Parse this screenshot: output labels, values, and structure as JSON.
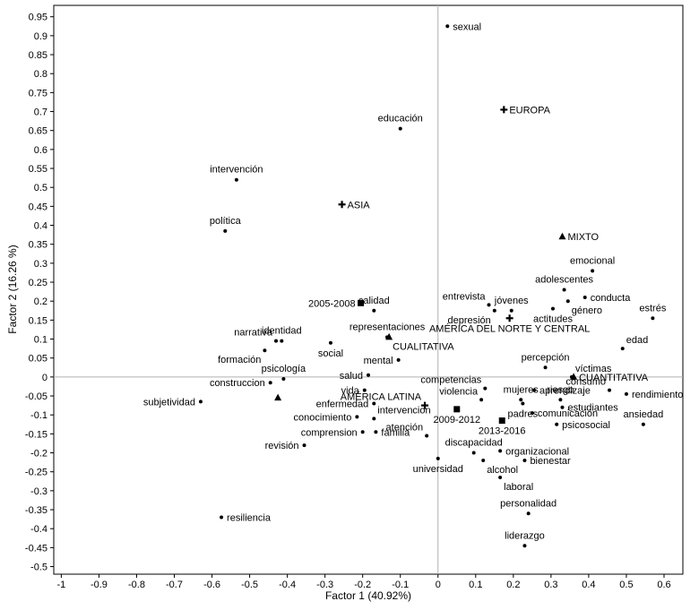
{
  "chart_data": {
    "type": "scatter",
    "title": "",
    "xlabel": "Factor 1 (40.92%)",
    "ylabel": "Factor 2 (16.26 %)",
    "xlim": [
      -1.02,
      0.65
    ],
    "ylim": [
      -0.52,
      0.98
    ],
    "xticks": [
      "-1",
      "-0.9",
      "-0.8",
      "-0.7",
      "-0.6",
      "-0.5",
      "-0.4",
      "-0.3",
      "-0.2",
      "-0.1",
      "0",
      "0.1",
      "0.2",
      "0.3",
      "0.4",
      "0.5",
      "0.6"
    ],
    "yticks": [
      "0.95",
      "0.9",
      "0.85",
      "0.8",
      "0.75",
      "0.7",
      "0.65",
      "0.6",
      "0.55",
      "0.5",
      "0.45",
      "0.4",
      "0.35",
      "0.3",
      "0.25",
      "0.2",
      "0.15",
      "0.1",
      "0.05",
      "0",
      "-0.05",
      "-0.1",
      "-0.15",
      "-0.2",
      "-0.25",
      "-0.3",
      "-0.35",
      "-0.4",
      "-0.45",
      "-0.5"
    ],
    "reference_lines": {
      "x": 0,
      "y": 0
    },
    "grid": false,
    "points": [
      {
        "label": "sexual",
        "x": 0.025,
        "y": 0.925,
        "marker": "dot",
        "pos": "right"
      },
      {
        "label": "EUROPA",
        "x": 0.175,
        "y": 0.705,
        "marker": "plus",
        "pos": "right"
      },
      {
        "label": "educación",
        "x": -0.1,
        "y": 0.655,
        "marker": "dot",
        "pos": "above"
      },
      {
        "label": "intervención",
        "x": -0.535,
        "y": 0.52,
        "marker": "dot",
        "pos": "above"
      },
      {
        "label": "ASIA",
        "x": -0.255,
        "y": 0.455,
        "marker": "plus",
        "pos": "right"
      },
      {
        "label": "política",
        "x": -0.565,
        "y": 0.385,
        "marker": "dot",
        "pos": "above"
      },
      {
        "label": "MIXTO",
        "x": 0.33,
        "y": 0.37,
        "marker": "triangle",
        "pos": "right"
      },
      {
        "label": "emocional",
        "x": 0.41,
        "y": 0.28,
        "marker": "dot",
        "pos": "above"
      },
      {
        "label": "adolescentes",
        "x": 0.335,
        "y": 0.23,
        "marker": "dot",
        "pos": "above"
      },
      {
        "label": "conducta",
        "x": 0.39,
        "y": 0.21,
        "marker": "dot",
        "pos": "right"
      },
      {
        "label": "estrés",
        "x": 0.57,
        "y": 0.155,
        "marker": "dot",
        "pos": "above"
      },
      {
        "label": "género",
        "x": 0.345,
        "y": 0.2,
        "marker": "dot",
        "pos": "below-right"
      },
      {
        "label": "2005-2008",
        "x": -0.205,
        "y": 0.195,
        "marker": "square",
        "pos": "left"
      },
      {
        "label": "calidad",
        "x": -0.17,
        "y": 0.175,
        "marker": "dot",
        "pos": "above"
      },
      {
        "label": "entrevista",
        "x": 0.135,
        "y": 0.19,
        "marker": "dot",
        "pos": "above-left"
      },
      {
        "label": "jóvenes",
        "x": 0.195,
        "y": 0.175,
        "marker": "dot",
        "pos": "above"
      },
      {
        "label": "depresión",
        "x": 0.15,
        "y": 0.175,
        "marker": "dot",
        "pos": "below-left"
      },
      {
        "label": "actitudes",
        "x": 0.305,
        "y": 0.18,
        "marker": "dot",
        "pos": "below"
      },
      {
        "label": "AMÉRICA DEL NORTE Y CENTRAL",
        "x": 0.19,
        "y": 0.155,
        "marker": "plus",
        "pos": "below"
      },
      {
        "label": "representaciones",
        "x": -0.135,
        "y": 0.105,
        "marker": "dot",
        "pos": "above"
      },
      {
        "label": "narrativa",
        "x": -0.43,
        "y": 0.095,
        "marker": "dot",
        "pos": "above-left"
      },
      {
        "label": "identidad",
        "x": -0.415,
        "y": 0.095,
        "marker": "dot",
        "pos": "above"
      },
      {
        "label": "social",
        "x": -0.285,
        "y": 0.09,
        "marker": "dot",
        "pos": "below"
      },
      {
        "label": "CUALITATIVA",
        "x": -0.13,
        "y": 0.105,
        "marker": "triangle",
        "pos": "below-right"
      },
      {
        "label": "edad",
        "x": 0.49,
        "y": 0.075,
        "marker": "dot",
        "pos": "above-right"
      },
      {
        "label": "formación",
        "x": -0.46,
        "y": 0.07,
        "marker": "dot",
        "pos": "below-left"
      },
      {
        "label": "mental",
        "x": -0.105,
        "y": 0.045,
        "marker": "dot",
        "pos": "left"
      },
      {
        "label": "percepción",
        "x": 0.285,
        "y": 0.025,
        "marker": "dot",
        "pos": "above"
      },
      {
        "label": "salud",
        "x": -0.185,
        "y": 0.005,
        "marker": "dot",
        "pos": "left"
      },
      {
        "label": "víctimas",
        "x": 0.355,
        "y": 0.0,
        "marker": "dot",
        "pos": "above-right"
      },
      {
        "label": "psicología",
        "x": -0.41,
        "y": -0.005,
        "marker": "dot",
        "pos": "above"
      },
      {
        "label": "CUANTITATIVA",
        "x": 0.36,
        "y": 0.0,
        "marker": "triangle",
        "pos": "right"
      },
      {
        "label": "construccion",
        "x": -0.445,
        "y": -0.015,
        "marker": "dot",
        "pos": "left"
      },
      {
        "label": "consumo",
        "x": 0.455,
        "y": -0.035,
        "marker": "dot",
        "pos": "above-left"
      },
      {
        "label": "rendimiento",
        "x": 0.5,
        "y": -0.045,
        "marker": "dot",
        "pos": "right"
      },
      {
        "label": "competencias",
        "x": 0.125,
        "y": -0.03,
        "marker": "dot",
        "pos": "above-left"
      },
      {
        "label": "aprendizaje",
        "x": 0.255,
        "y": -0.035,
        "marker": "dot",
        "pos": "right"
      },
      {
        "label": "vida",
        "x": -0.195,
        "y": -0.035,
        "marker": "dot",
        "pos": "left"
      },
      {
        "label": "AMÉRICA LATINA",
        "x": -0.035,
        "y": -0.075,
        "marker": "plus",
        "pos": "above-left"
      },
      {
        "label": "violencia",
        "x": 0.115,
        "y": -0.06,
        "marker": "dot",
        "pos": "above-left"
      },
      {
        "label": "mujeres",
        "x": 0.22,
        "y": -0.06,
        "marker": "dot",
        "pos": "above"
      },
      {
        "label": "riesgo",
        "x": 0.325,
        "y": -0.06,
        "marker": "dot",
        "pos": "above"
      },
      {
        "label": "subjetividad",
        "x": -0.63,
        "y": -0.065,
        "marker": "dot",
        "pos": "left"
      },
      {
        "label": "",
        "x": -0.425,
        "y": -0.055,
        "marker": "triangle",
        "pos": "none"
      },
      {
        "label": "enfermedad",
        "x": -0.17,
        "y": -0.07,
        "marker": "dot",
        "pos": "left"
      },
      {
        "label": "padres",
        "x": 0.225,
        "y": -0.07,
        "marker": "dot",
        "pos": "below"
      },
      {
        "label": "estudiantes",
        "x": 0.33,
        "y": -0.08,
        "marker": "dot",
        "pos": "right"
      },
      {
        "label": "2009-2012",
        "x": 0.05,
        "y": -0.085,
        "marker": "square",
        "pos": "below"
      },
      {
        "label": "comunicación",
        "x": 0.25,
        "y": -0.095,
        "marker": "dot",
        "pos": "right"
      },
      {
        "label": "intervencion",
        "x": -0.17,
        "y": -0.11,
        "marker": "dot",
        "pos": "above-right"
      },
      {
        "label": "conocimiento",
        "x": -0.215,
        "y": -0.105,
        "marker": "dot",
        "pos": "left"
      },
      {
        "label": "2013-2016",
        "x": 0.17,
        "y": -0.115,
        "marker": "square",
        "pos": "below"
      },
      {
        "label": "ansiedad",
        "x": 0.545,
        "y": -0.125,
        "marker": "dot",
        "pos": "above"
      },
      {
        "label": "psicosocial",
        "x": 0.315,
        "y": -0.125,
        "marker": "dot",
        "pos": "right"
      },
      {
        "label": "comprension",
        "x": -0.2,
        "y": -0.145,
        "marker": "dot",
        "pos": "left"
      },
      {
        "label": "familia",
        "x": -0.165,
        "y": -0.145,
        "marker": "dot",
        "pos": "right"
      },
      {
        "label": "atención",
        "x": -0.03,
        "y": -0.155,
        "marker": "dot",
        "pos": "above-left"
      },
      {
        "label": "revisión",
        "x": -0.355,
        "y": -0.18,
        "marker": "dot",
        "pos": "left"
      },
      {
        "label": "discapacidad",
        "x": 0.095,
        "y": -0.2,
        "marker": "dot",
        "pos": "above"
      },
      {
        "label": "organizacional",
        "x": 0.165,
        "y": -0.195,
        "marker": "dot",
        "pos": "right"
      },
      {
        "label": "universidad",
        "x": 0.0,
        "y": -0.215,
        "marker": "dot",
        "pos": "below"
      },
      {
        "label": "bienestar",
        "x": 0.23,
        "y": -0.22,
        "marker": "dot",
        "pos": "right"
      },
      {
        "label": "alcohol",
        "x": 0.12,
        "y": -0.22,
        "marker": "dot",
        "pos": "below-right"
      },
      {
        "label": "laboral",
        "x": 0.165,
        "y": -0.265,
        "marker": "dot",
        "pos": "below-right"
      },
      {
        "label": "personalidad",
        "x": 0.24,
        "y": -0.36,
        "marker": "dot",
        "pos": "above"
      },
      {
        "label": "resiliencia",
        "x": -0.575,
        "y": -0.37,
        "marker": "dot",
        "pos": "right"
      },
      {
        "label": "liderazgo",
        "x": 0.23,
        "y": -0.445,
        "marker": "dot",
        "pos": "above"
      }
    ]
  }
}
